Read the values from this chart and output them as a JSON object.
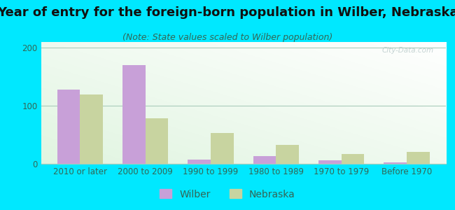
{
  "title": "Year of entry for the foreign-born population in Wilber, Nebraska",
  "subtitle": "(Note: State values scaled to Wilber population)",
  "categories": [
    "2010 or later",
    "2000 to 2009",
    "1990 to 1999",
    "1980 to 1989",
    "1970 to 1979",
    "Before 1970"
  ],
  "wilber_values": [
    128,
    170,
    7,
    13,
    6,
    3
  ],
  "nebraska_values": [
    120,
    78,
    53,
    32,
    17,
    20
  ],
  "wilber_color": "#c8a0d8",
  "nebraska_color": "#c8d4a0",
  "background_outer": "#00e8ff",
  "ylim": [
    0,
    210
  ],
  "yticks": [
    0,
    100,
    200
  ],
  "bar_width": 0.35,
  "title_fontsize": 13,
  "subtitle_fontsize": 9,
  "tick_fontsize": 8.5,
  "legend_fontsize": 10,
  "tick_color": "#336655",
  "title_color": "#111111"
}
